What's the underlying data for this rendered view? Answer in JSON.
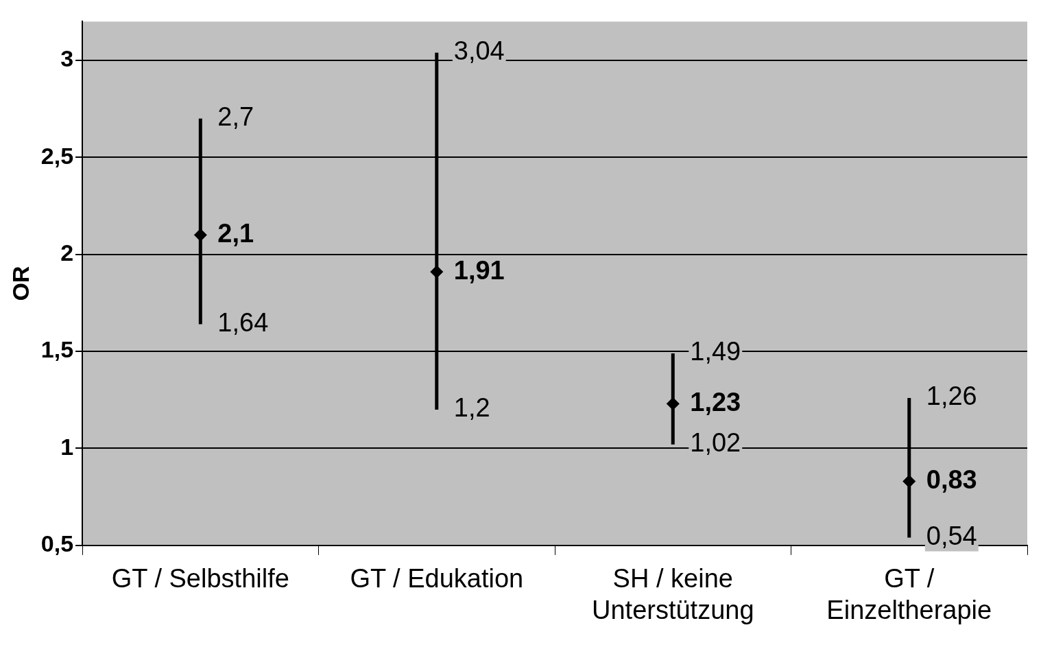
{
  "chart_data": {
    "type": "scatter",
    "ylabel": "OR",
    "categories": [
      "GT / Selbsthilfe",
      "GT / Edukation",
      "SH / keine Unterstützung",
      "GT / Einzeltherapie"
    ],
    "values": [
      2.1,
      1.91,
      1.23,
      0.83
    ],
    "errors": [
      [
        1.64,
        2.7
      ],
      [
        1.2,
        3.04
      ],
      [
        1.02,
        1.49
      ],
      [
        0.54,
        1.26
      ]
    ],
    "value_labels": [
      "2,1",
      "1,91",
      "1,23",
      "0,83"
    ],
    "color": "#000000",
    "marker": "diamond",
    "grid": "y",
    "legend": false,
    "ylim": [
      0.5,
      3.2
    ],
    "yticks": [
      {
        "value": 0.5,
        "label": "0,5"
      },
      {
        "value": 1,
        "label": "1"
      },
      {
        "value": 1.5,
        "label": "1,5"
      },
      {
        "value": 2,
        "label": "2"
      },
      {
        "value": 2.5,
        "label": "2,5"
      },
      {
        "value": 3,
        "label": "3"
      }
    ],
    "annotations": [
      {
        "text": "2,7",
        "x": "GT / Selbsthilfe",
        "y": 2.7
      },
      {
        "text": "1,64",
        "x": "GT / Selbsthilfe",
        "y": 1.64
      },
      {
        "text": "3,04",
        "x": "GT / Edukation",
        "y": 3.04
      },
      {
        "text": "1,2",
        "x": "GT / Edukation",
        "y": 1.2
      },
      {
        "text": "1,49",
        "x": "SH / keine Unterstützung",
        "y": 1.49
      },
      {
        "text": "1,02",
        "x": "SH / keine Unterstützung",
        "y": 1.02
      },
      {
        "text": "1,26",
        "x": "GT / Einzeltherapie",
        "y": 1.26
      },
      {
        "text": "0,54",
        "x": "GT / Einzeltherapie",
        "y": 0.54
      }
    ]
  }
}
